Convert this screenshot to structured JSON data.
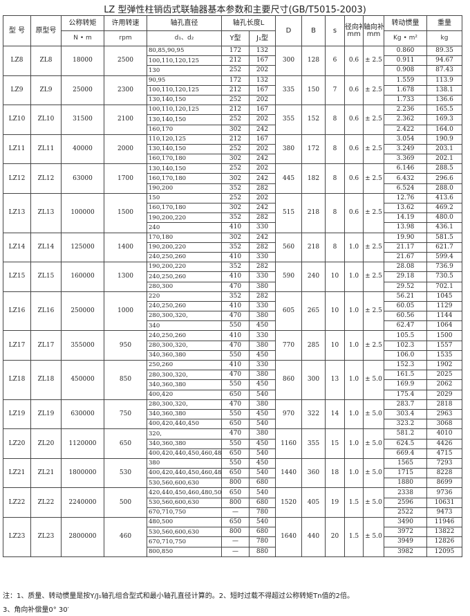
{
  "title": "LZ 型弹性柱销齿式联轴器基本参数和主要尺寸(GB/T5015-2003)",
  "header": {
    "model": "型 号",
    "old": "原型号",
    "torque": "公称转矩",
    "torque_unit": "N • m",
    "speed": "许用转速",
    "speed_unit": "rpm",
    "bore": "轴孔直径",
    "bore_unit": "d₁、d₂",
    "length": "轴孔长度L",
    "y": "Y型",
    "j": "J₁型",
    "D": "D",
    "B": "B",
    "s": "s",
    "radial": "径向补偿",
    "radial_unit": "mm",
    "axial": "轴向补偿",
    "axial_unit": "mm",
    "inertia": "转动惯量",
    "inertia_unit": "Kg • m²",
    "weight": "重量",
    "weight_unit": "kg"
  },
  "groups": [
    {
      "model": "LZ8",
      "old": "ZL8",
      "torque": "18000",
      "speed": "2500",
      "D": "300",
      "B": "128",
      "s": "6",
      "radial": "0.6",
      "axial": "± 2.5",
      "rows": [
        [
          "80,85,90,95",
          "172",
          "132",
          "0.860",
          "89.35"
        ],
        [
          "100,110,120,125",
          "212",
          "167",
          "0.911",
          "94.67"
        ],
        [
          "130",
          "252",
          "202",
          "0.908",
          "87.43"
        ]
      ]
    },
    {
      "model": "LZ9",
      "old": "ZL9",
      "torque": "25000",
      "speed": "2300",
      "D": "335",
      "B": "150",
      "s": "7",
      "radial": "0.6",
      "axial": "± 2.5",
      "rows": [
        [
          "90,95",
          "172",
          "132",
          "1.559",
          "113.9"
        ],
        [
          "100,110,120,125",
          "212",
          "167",
          "1.678",
          "138.1"
        ],
        [
          "130,140,150",
          "252",
          "202",
          "1.733",
          "136.6"
        ]
      ]
    },
    {
      "model": "LZ10",
      "old": "ZL10",
      "torque": "31500",
      "speed": "2100",
      "D": "355",
      "B": "152",
      "s": "8",
      "radial": "0.6",
      "axial": "± 2.5",
      "rows": [
        [
          "100,110,120,125",
          "212",
          "167",
          "2.236",
          "165.5"
        ],
        [
          "130,140,150",
          "252",
          "202",
          "2.362",
          "169.3"
        ],
        [
          "160,170",
          "302",
          "242",
          "2.422",
          "164.0"
        ]
      ]
    },
    {
      "model": "LZ11",
      "old": "ZL11",
      "torque": "40000",
      "speed": "2000",
      "D": "380",
      "B": "172",
      "s": "8",
      "radial": "0.6",
      "axial": "± 2.5",
      "rows": [
        [
          "110,120,125",
          "212",
          "167",
          "3.054",
          "190.9"
        ],
        [
          "130,140,150",
          "252",
          "202",
          "3.249",
          "203.1"
        ],
        [
          "160,170,180",
          "302",
          "242",
          "3.369",
          "202.1"
        ]
      ]
    },
    {
      "model": "LZ12",
      "old": "ZL12",
      "torque": "63000",
      "speed": "1700",
      "D": "445",
      "B": "182",
      "s": "8",
      "radial": "0.6",
      "axial": "± 2.5",
      "rows": [
        [
          "130,140,150",
          "252",
          "202",
          "6.146",
          "288.5"
        ],
        [
          "160,170,180",
          "302",
          "242",
          "6.432",
          "296.6"
        ],
        [
          "190,200",
          "352",
          "282",
          "6.524",
          "288.0"
        ]
      ]
    },
    {
      "model": "LZ13",
      "old": "ZL13",
      "torque": "100000",
      "speed": "1500",
      "D": "515",
      "B": "218",
      "s": "8",
      "radial": "0.6",
      "axial": "± 2.5",
      "rows": [
        [
          "150",
          "252",
          "202",
          "12.76",
          "413.6"
        ],
        [
          "160,170,180",
          "302",
          "242",
          "13.62",
          "469.2"
        ],
        [
          "190,200,220",
          "352",
          "282",
          "14.19",
          "480.0"
        ],
        [
          "240",
          "410",
          "330",
          "13.98",
          "436.1"
        ]
      ]
    },
    {
      "model": "LZ14",
      "old": "ZL14",
      "torque": "125000",
      "speed": "1400",
      "D": "560",
      "B": "218",
      "s": "8",
      "radial": "1.0",
      "axial": "± 2.5",
      "rows": [
        [
          "170,180",
          "302",
          "242",
          "19.90",
          "581.5"
        ],
        [
          "190,200,220",
          "352",
          "282",
          "21.17",
          "621.7"
        ],
        [
          "240,250,260",
          "410",
          "330",
          "21.67",
          "599.4"
        ]
      ]
    },
    {
      "model": "LZ15",
      "old": "ZL15",
      "torque": "160000",
      "speed": "1300",
      "D": "590",
      "B": "240",
      "s": "10",
      "radial": "1.0",
      "axial": "± 2.5",
      "rows": [
        [
          "190,200,220",
          "352",
          "282",
          "28.08",
          "736.9"
        ],
        [
          "240,250,260",
          "410",
          "330",
          "29.18",
          "730.5"
        ],
        [
          "280,300",
          "470",
          "380",
          "29.52",
          "702.1"
        ]
      ]
    },
    {
      "model": "LZ16",
      "old": "ZL16",
      "torque": "250000",
      "speed": "1000",
      "D": "605",
      "B": "265",
      "s": "10",
      "radial": "1.0",
      "axial": "± 2.5",
      "rows": [
        [
          "220",
          "352",
          "282",
          "56.21",
          "1045"
        ],
        [
          "240,250,260",
          "410",
          "330",
          "60.05",
          "1129"
        ],
        [
          "280,300,320,",
          "470",
          "380",
          "60.56",
          "1144"
        ],
        [
          "340",
          "550",
          "450",
          "62.47",
          "1064"
        ]
      ]
    },
    {
      "model": "LZ17",
      "old": "ZL17",
      "torque": "355000",
      "speed": "950",
      "D": "770",
      "B": "285",
      "s": "10",
      "radial": "1.0",
      "axial": "± 2.5",
      "rows": [
        [
          "240,250,260",
          "410",
          "330",
          "105.5",
          "1500"
        ],
        [
          "280,300,320,",
          "470",
          "380",
          "102.3",
          "1557"
        ],
        [
          "340,360,380",
          "550",
          "450",
          "106.0",
          "1535"
        ]
      ]
    },
    {
      "model": "LZ18",
      "old": "ZL18",
      "torque": "450000",
      "speed": "850",
      "D": "860",
      "B": "300",
      "s": "13",
      "radial": "1.0",
      "axial": "± 5.0",
      "rows": [
        [
          "250,260",
          "410",
          "330",
          "152.3",
          "1902"
        ],
        [
          "280,300,320,",
          "470",
          "380",
          "161.5",
          "2025"
        ],
        [
          "340,360,380",
          "550",
          "450",
          "169.9",
          "2062"
        ],
        [
          "400,420",
          "650",
          "540",
          "175.4",
          "2029"
        ]
      ]
    },
    {
      "model": "LZ19",
      "old": "ZL19",
      "torque": "630000",
      "speed": "750",
      "D": "970",
      "B": "322",
      "s": "14",
      "radial": "1.0",
      "axial": "± 5.0",
      "rows": [
        [
          "280,300,320,",
          "470",
          "380",
          "283.7",
          "2818"
        ],
        [
          "340,360,380",
          "550",
          "450",
          "303.4",
          "2963"
        ],
        [
          "400,420,440,450",
          "650",
          "540",
          "323.2",
          "3068"
        ]
      ]
    },
    {
      "model": "LZ20",
      "old": "ZL20",
      "torque": "1120000",
      "speed": "650",
      "D": "1160",
      "B": "355",
      "s": "15",
      "radial": "1.0",
      "axial": "± 5.0",
      "rows": [
        [
          "320,",
          "470",
          "380",
          "581.2",
          "4010"
        ],
        [
          "340,360,380",
          "550",
          "450",
          "624.5",
          "4426"
        ],
        [
          "400,420,440,450,460,480,500",
          "650",
          "540",
          "669.4",
          "4715"
        ]
      ]
    },
    {
      "model": "LZ21",
      "old": "ZL21",
      "torque": "1800000",
      "speed": "530",
      "D": "1440",
      "B": "360",
      "s": "18",
      "radial": "1.0",
      "axial": "± 5.0",
      "rows": [
        [
          "380",
          "550",
          "450",
          "1565",
          "7293"
        ],
        [
          "400,420,440,450,460,480,500",
          "650",
          "540",
          "1715",
          "8228"
        ],
        [
          "530,560,600,630",
          "800",
          "680",
          "1880",
          "8699"
        ]
      ]
    },
    {
      "model": "LZ22",
      "old": "ZL22",
      "torque": "2240000",
      "speed": "500",
      "D": "1520",
      "B": "405",
      "s": "19",
      "radial": "1.5",
      "axial": "± 5.0",
      "rows": [
        [
          "420,440,450,460,480,500",
          "650",
          "540",
          "2338",
          "9736"
        ],
        [
          "530,560,600,630",
          "800",
          "680",
          "2596",
          "10631"
        ],
        [
          "670,710,750",
          "—",
          "780",
          "2522",
          "9473"
        ]
      ]
    },
    {
      "model": "LZ23",
      "old": "ZL23",
      "torque": "2800000",
      "speed": "460",
      "D": "1640",
      "B": "440",
      "s": "20",
      "radial": "1.5",
      "axial": "± 5.0",
      "rows": [
        [
          "480,500",
          "650",
          "540",
          "3490",
          "11946"
        ],
        [
          "530,560,600,630",
          "800",
          "680",
          "3972",
          "13822"
        ],
        [
          "670,710,750",
          "—",
          "780",
          "3949",
          "12826"
        ],
        [
          "800,850",
          "—",
          "880",
          "3982",
          "12095"
        ]
      ]
    }
  ],
  "notes": [
    "注：1、质量、转动惯量是按Y/J₁轴孔组合型式和最小轴孔直径计算的。2、短时过载不得超过公称转矩Tn值的2倍。",
    "3、角向补偿量0° 30′"
  ]
}
